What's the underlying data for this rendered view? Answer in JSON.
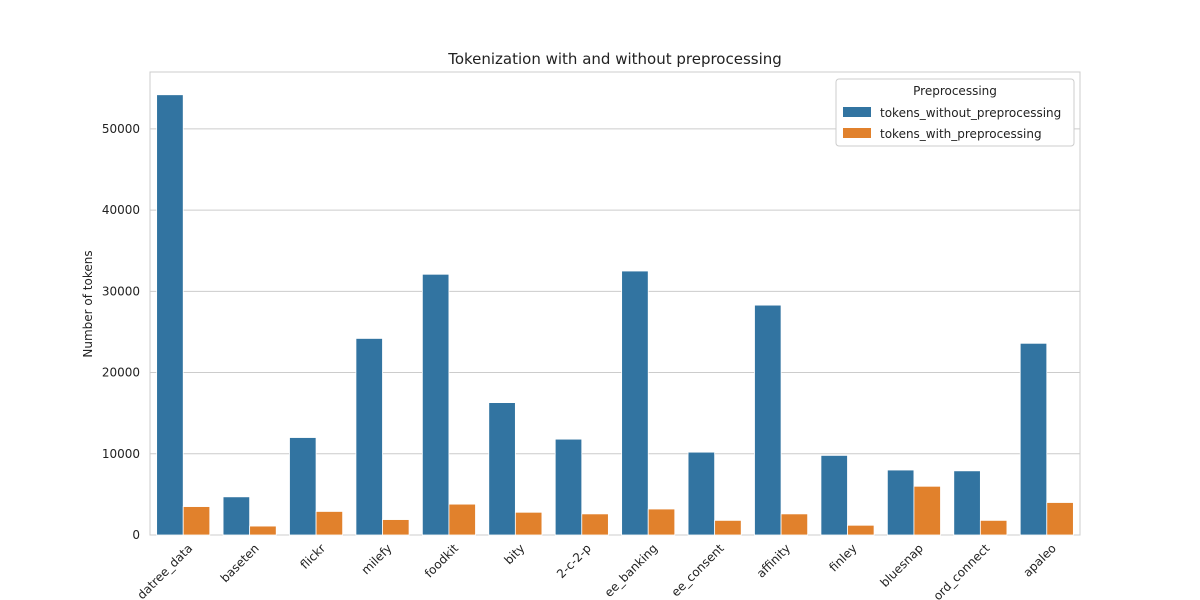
{
  "chart_data": {
    "type": "bar",
    "title": "Tokenization with and without preprocessing",
    "xlabel": "",
    "ylabel": "Number of tokens",
    "ylim": [
      0,
      57000
    ],
    "yticks": [
      0,
      10000,
      20000,
      30000,
      40000,
      50000
    ],
    "ytick_labels": [
      "0",
      "10000",
      "20000",
      "30000",
      "40000",
      "50000"
    ],
    "grid": true,
    "legend_placement": "top-right",
    "legend_title": "Preprocessing",
    "categories": [
      "datree_data",
      "baseten",
      "flickr",
      "milefy",
      "foodkit",
      "bity",
      "2-c-2-p",
      "ee_banking",
      "ee_consent",
      "affinity",
      "finley",
      "bluesnap",
      "ord_connect",
      "apaleo"
    ],
    "series": [
      {
        "name": "tokens_without_preprocessing",
        "color": "#3274a1",
        "values": [
          54200,
          4700,
          12000,
          24200,
          32100,
          16300,
          11800,
          32500,
          10200,
          28300,
          9800,
          8000,
          7900,
          23600
        ]
      },
      {
        "name": "tokens_with_preprocessing",
        "color": "#e1812c",
        "values": [
          3500,
          1100,
          2900,
          1900,
          3800,
          2800,
          2600,
          3200,
          1800,
          2600,
          1200,
          6000,
          1800,
          4000
        ]
      }
    ]
  }
}
